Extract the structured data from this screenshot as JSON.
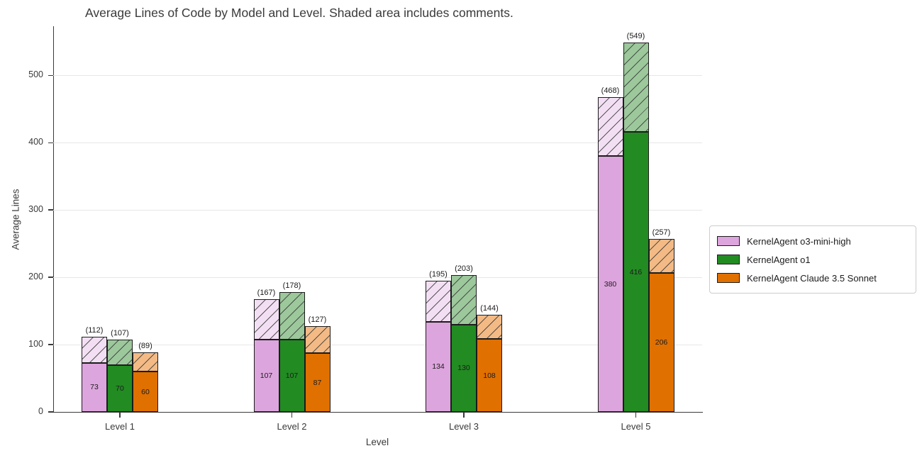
{
  "chart_data": {
    "type": "bar",
    "title": "Average Lines of Code by Model and Level. Shaded area includes comments.",
    "xlabel": "Level",
    "ylabel": "Average Lines",
    "categories": [
      "Level 1",
      "Level 2",
      "Level 3",
      "Level 5"
    ],
    "series": [
      {
        "name": "KernelAgent o3-mini-high",
        "color": "#DDA5DD",
        "light_color": "#F3DFF3",
        "values": [
          73,
          107,
          134,
          380
        ],
        "totals_with_comments": [
          112,
          167,
          195,
          468
        ]
      },
      {
        "name": "KernelAgent o1",
        "color": "#228B22",
        "light_color": "#9CC89C",
        "values": [
          70,
          107,
          130,
          416
        ],
        "totals_with_comments": [
          107,
          178,
          203,
          549
        ]
      },
      {
        "name": "KernelAgent Claude 3.5 Sonnet",
        "color": "#E07000",
        "light_color": "#F3BA85",
        "values": [
          60,
          87,
          108,
          206
        ],
        "totals_with_comments": [
          89,
          127,
          144,
          257
        ]
      }
    ],
    "total_label_format": "({v})",
    "yticks": [
      0,
      100,
      200,
      300,
      400,
      500
    ],
    "ylim": [
      0,
      573
    ],
    "grid": "horizontal",
    "legend_position": "outside-center-right",
    "hatch": "forward-diagonal",
    "hatch_line_color": "rgba(50,50,50,0.8)",
    "edge_color": "#1c1c1c"
  }
}
